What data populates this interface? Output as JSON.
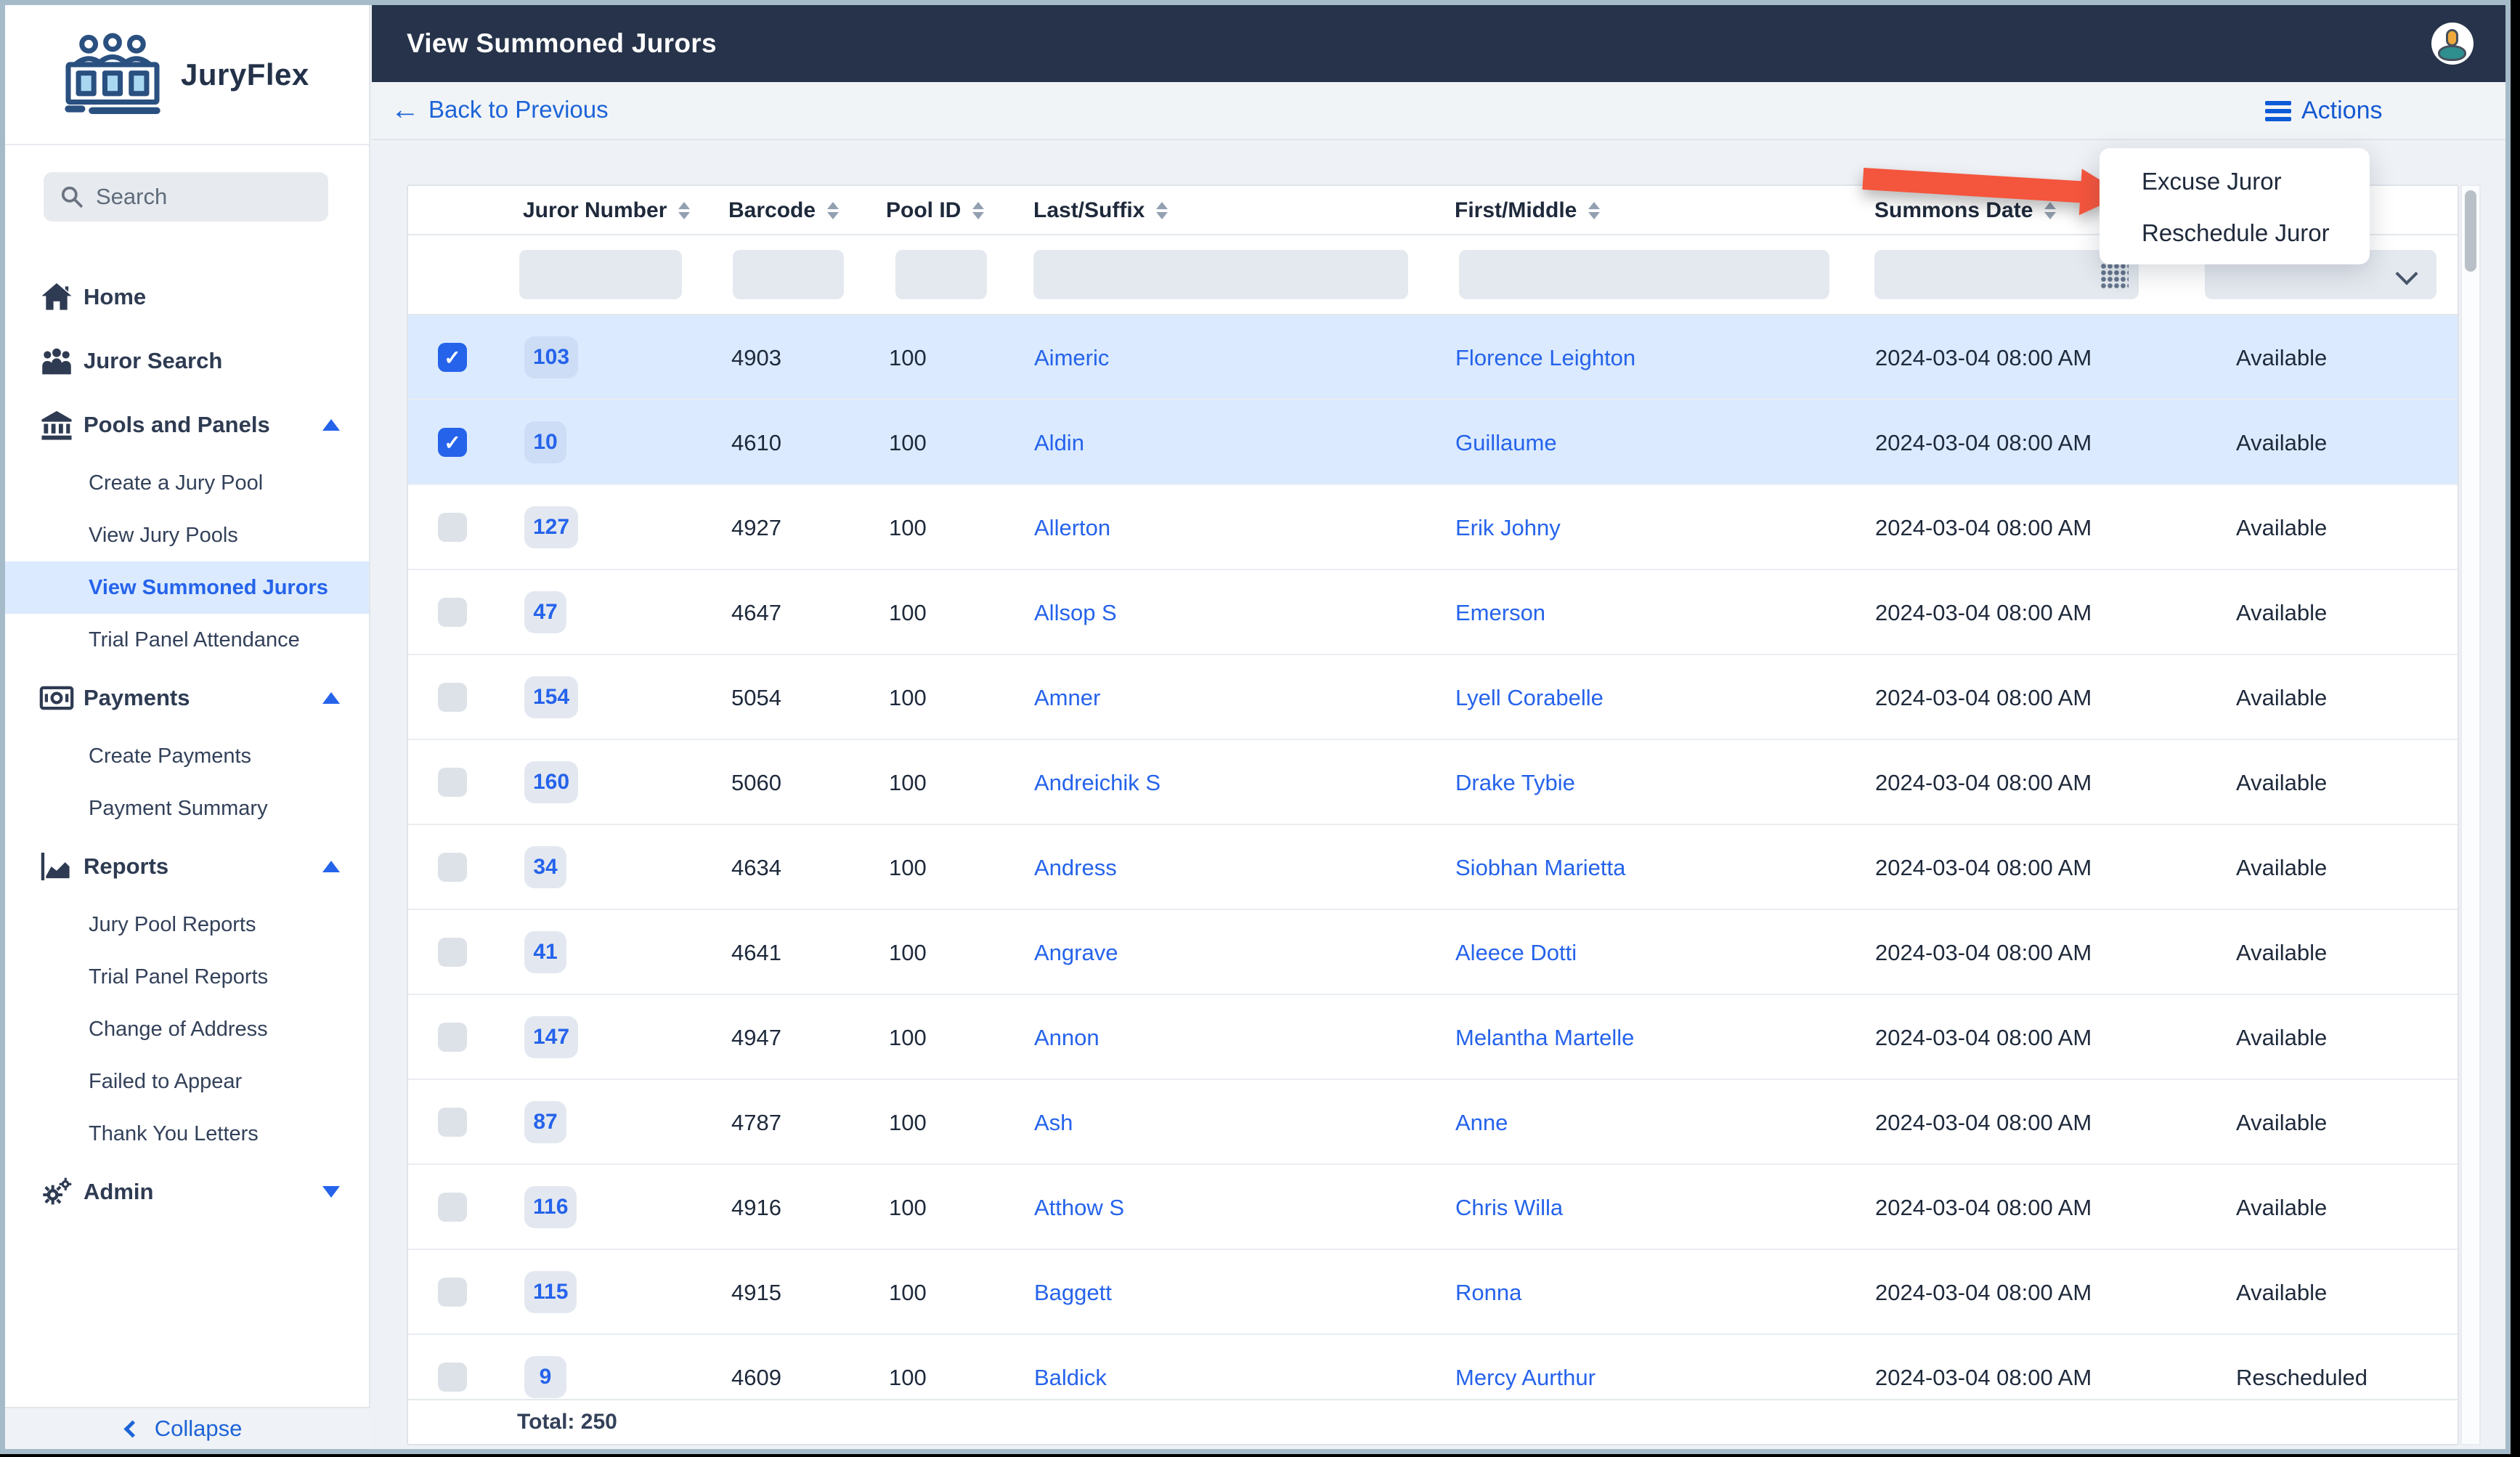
{
  "brand": {
    "name": "JuryFlex"
  },
  "header": {
    "title": "View Summoned Jurors"
  },
  "toolbar": {
    "back_label": "Back to Previous",
    "actions_label": "Actions"
  },
  "actions_menu": {
    "items": [
      "Excuse Juror",
      "Reschedule Juror"
    ]
  },
  "sidebar": {
    "search_placeholder": "Search",
    "collapse_label": "Collapse",
    "items": [
      {
        "label": "Home",
        "level": 1,
        "icon": "home",
        "caret": null
      },
      {
        "label": "Juror Search",
        "level": 1,
        "icon": "users",
        "caret": null
      },
      {
        "label": "Pools and Panels",
        "level": 1,
        "icon": "bank",
        "caret": "up"
      },
      {
        "label": "Create a Jury Pool",
        "level": 2,
        "icon": null,
        "caret": null
      },
      {
        "label": "View Jury Pools",
        "level": 2,
        "icon": null,
        "caret": null
      },
      {
        "label": "View Summoned Jurors",
        "level": 2,
        "icon": null,
        "caret": null,
        "active": true
      },
      {
        "label": "Trial Panel Attendance",
        "level": 2,
        "icon": null,
        "caret": null
      },
      {
        "label": "Payments",
        "level": 1,
        "icon": "banknote",
        "caret": "up"
      },
      {
        "label": "Create Payments",
        "level": 2,
        "icon": null,
        "caret": null
      },
      {
        "label": "Payment Summary",
        "level": 2,
        "icon": null,
        "caret": null
      },
      {
        "label": "Reports",
        "level": 1,
        "icon": "chart",
        "caret": "up"
      },
      {
        "label": "Jury Pool Reports",
        "level": 2,
        "icon": null,
        "caret": null
      },
      {
        "label": "Trial Panel Reports",
        "level": 2,
        "icon": null,
        "caret": null
      },
      {
        "label": "Change of Address",
        "level": 2,
        "icon": null,
        "caret": null
      },
      {
        "label": "Failed to Appear",
        "level": 2,
        "icon": null,
        "caret": null
      },
      {
        "label": "Thank You Letters",
        "level": 2,
        "icon": null,
        "caret": null
      },
      {
        "label": "Admin",
        "level": 1,
        "icon": "gear",
        "caret": "down"
      }
    ]
  },
  "table": {
    "columns": [
      {
        "key": "juror_number",
        "label": "Juror Number",
        "sortable": true
      },
      {
        "key": "barcode",
        "label": "Barcode",
        "sortable": true
      },
      {
        "key": "pool_id",
        "label": "Pool ID",
        "sortable": true
      },
      {
        "key": "last_suffix",
        "label": "Last/Suffix",
        "sortable": true
      },
      {
        "key": "first_middle",
        "label": "First/Middle",
        "sortable": true
      },
      {
        "key": "summons_date",
        "label": "Summons Date",
        "sortable": true
      }
    ],
    "filter_values": {
      "juror_number": "",
      "barcode": "",
      "pool_id": "",
      "last_suffix": "",
      "first_middle": "",
      "summons_date": "",
      "status": ""
    },
    "rows": [
      {
        "checked": true,
        "juror_number": "103",
        "barcode": "4903",
        "pool_id": "100",
        "last_suffix": "Aimeric",
        "first_middle": "Florence Leighton",
        "summons_date": "2024-03-04 08:00 AM",
        "status": "Available"
      },
      {
        "checked": true,
        "juror_number": "10",
        "barcode": "4610",
        "pool_id": "100",
        "last_suffix": "Aldin",
        "first_middle": "Guillaume",
        "summons_date": "2024-03-04 08:00 AM",
        "status": "Available"
      },
      {
        "checked": false,
        "juror_number": "127",
        "barcode": "4927",
        "pool_id": "100",
        "last_suffix": "Allerton",
        "first_middle": "Erik Johny",
        "summons_date": "2024-03-04 08:00 AM",
        "status": "Available"
      },
      {
        "checked": false,
        "juror_number": "47",
        "barcode": "4647",
        "pool_id": "100",
        "last_suffix": "Allsop S",
        "first_middle": "Emerson",
        "summons_date": "2024-03-04 08:00 AM",
        "status": "Available"
      },
      {
        "checked": false,
        "juror_number": "154",
        "barcode": "5054",
        "pool_id": "100",
        "last_suffix": "Amner",
        "first_middle": "Lyell Corabelle",
        "summons_date": "2024-03-04 08:00 AM",
        "status": "Available"
      },
      {
        "checked": false,
        "juror_number": "160",
        "barcode": "5060",
        "pool_id": "100",
        "last_suffix": "Andreichik S",
        "first_middle": "Drake Tybie",
        "summons_date": "2024-03-04 08:00 AM",
        "status": "Available"
      },
      {
        "checked": false,
        "juror_number": "34",
        "barcode": "4634",
        "pool_id": "100",
        "last_suffix": "Andress",
        "first_middle": "Siobhan Marietta",
        "summons_date": "2024-03-04 08:00 AM",
        "status": "Available"
      },
      {
        "checked": false,
        "juror_number": "41",
        "barcode": "4641",
        "pool_id": "100",
        "last_suffix": "Angrave",
        "first_middle": "Aleece Dotti",
        "summons_date": "2024-03-04 08:00 AM",
        "status": "Available"
      },
      {
        "checked": false,
        "juror_number": "147",
        "barcode": "4947",
        "pool_id": "100",
        "last_suffix": "Annon",
        "first_middle": "Melantha Martelle",
        "summons_date": "2024-03-04 08:00 AM",
        "status": "Available"
      },
      {
        "checked": false,
        "juror_number": "87",
        "barcode": "4787",
        "pool_id": "100",
        "last_suffix": "Ash",
        "first_middle": "Anne",
        "summons_date": "2024-03-04 08:00 AM",
        "status": "Available"
      },
      {
        "checked": false,
        "juror_number": "116",
        "barcode": "4916",
        "pool_id": "100",
        "last_suffix": "Atthow S",
        "first_middle": "Chris Willa",
        "summons_date": "2024-03-04 08:00 AM",
        "status": "Available"
      },
      {
        "checked": false,
        "juror_number": "115",
        "barcode": "4915",
        "pool_id": "100",
        "last_suffix": "Baggett",
        "first_middle": "Ronna",
        "summons_date": "2024-03-04 08:00 AM",
        "status": "Available"
      },
      {
        "checked": false,
        "juror_number": "9",
        "barcode": "4609",
        "pool_id": "100",
        "last_suffix": "Baldick",
        "first_middle": "Mercy Aurthur",
        "summons_date": "2024-03-04 08:00 AM",
        "status": "Rescheduled"
      }
    ],
    "footer_total": "Total: 250"
  },
  "colors": {
    "accent_blue": "#2563eb",
    "navy_header": "#26334a",
    "selected_row_bg": "#dbeafe",
    "arrow_red": "#f4553d",
    "page_bg": "#eef1f5",
    "frame_border": "#a6bbc9",
    "table_text": "#1e293b",
    "badge_bg": "#e3e8f0"
  }
}
